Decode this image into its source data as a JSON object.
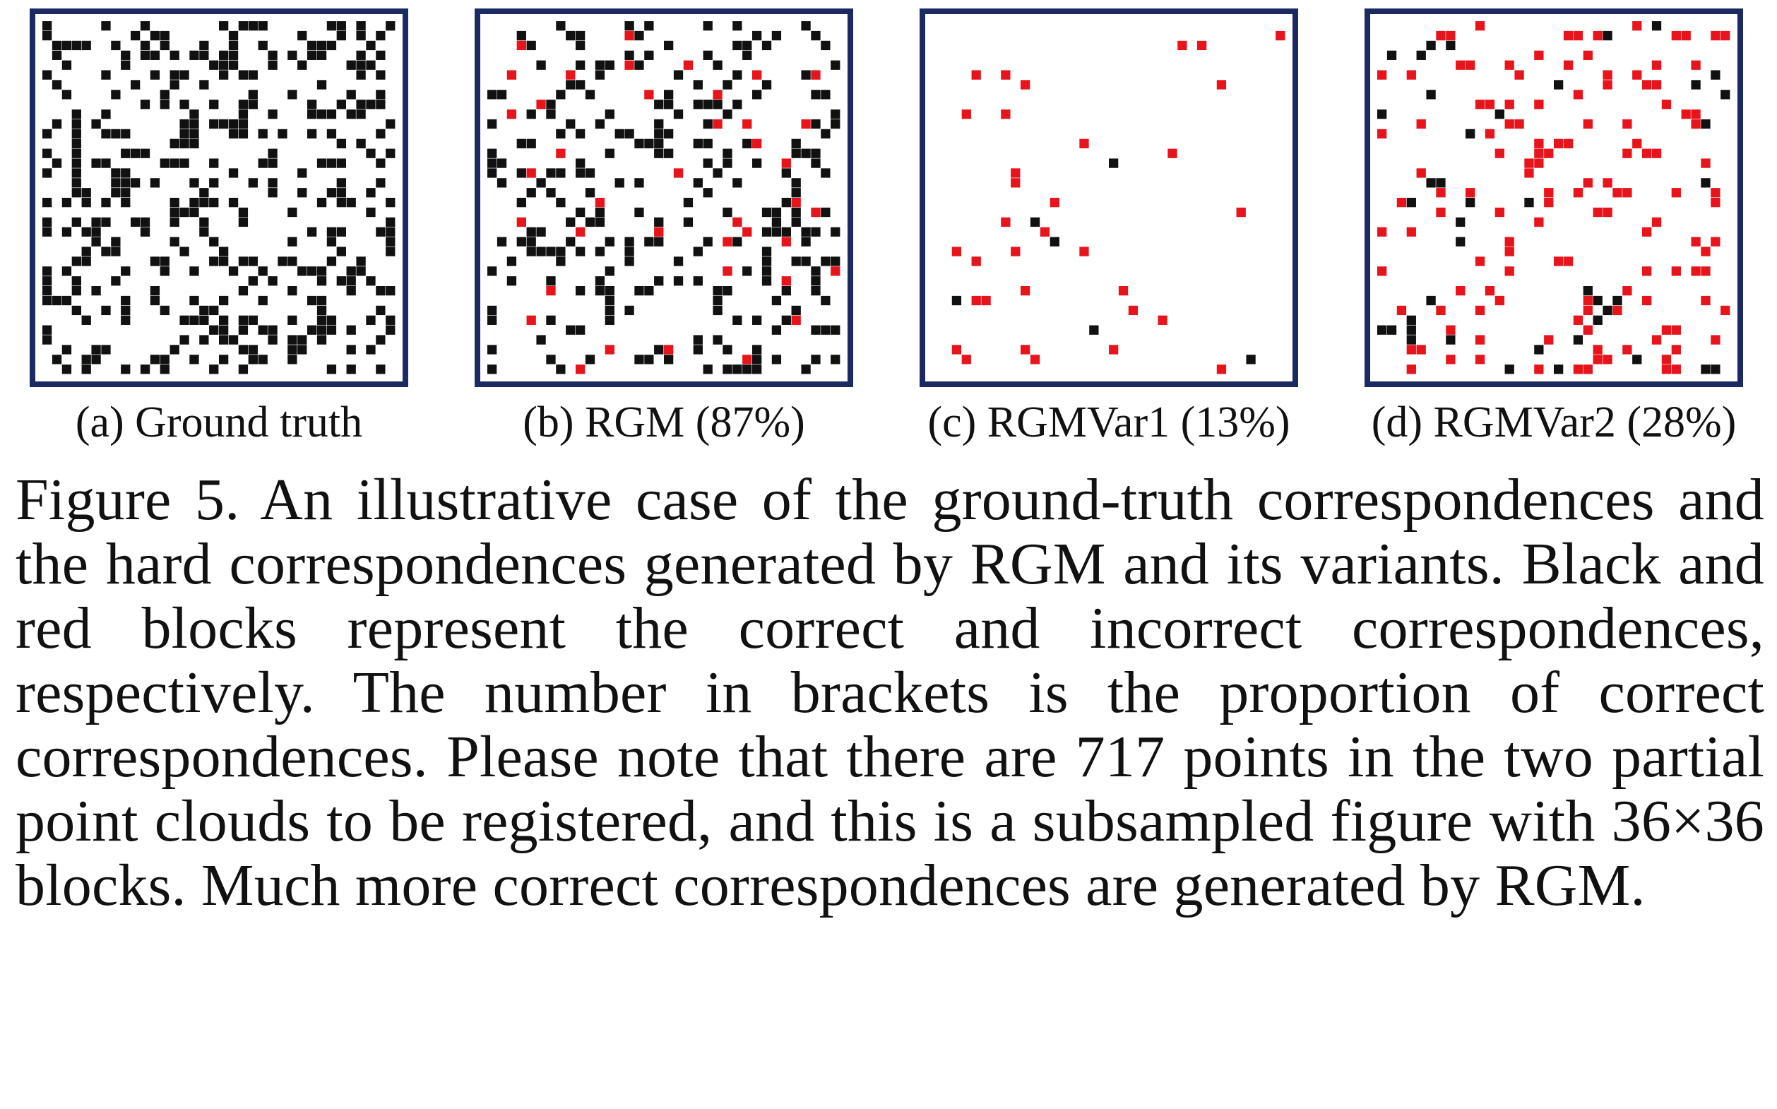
{
  "figure": {
    "grid_size": 36,
    "colors": {
      "frame": "#1b2a63",
      "correct": "#111111",
      "incorrect": "#e8141c",
      "background": "#ffffff"
    },
    "panels": [
      {
        "id": "a",
        "caption": "(a) Ground truth",
        "correct_ratio": 1.0
      },
      {
        "id": "b",
        "caption": "(b) RGM (87%)",
        "correct_ratio": 0.87
      },
      {
        "id": "c",
        "caption": "(c) RGMVar1 (13%)",
        "correct_ratio": 0.13
      },
      {
        "id": "d",
        "caption": "(d) RGMVar2 (28%)",
        "correct_ratio": 0.28
      }
    ],
    "caption": "Figure 5. An illustrative case of the ground-truth correspondences and the hard correspondences generated by RGM and its variants. Black and red blocks represent the correct and incorrect correspondences, respectively. The number in brackets is the proportion of correct correspondences. Please note that there are 717 points in the two partial point clouds to be registered, and this is a subsampled figure with 36×36 blocks. Much more correct correspondences are generated by RGM."
  }
}
